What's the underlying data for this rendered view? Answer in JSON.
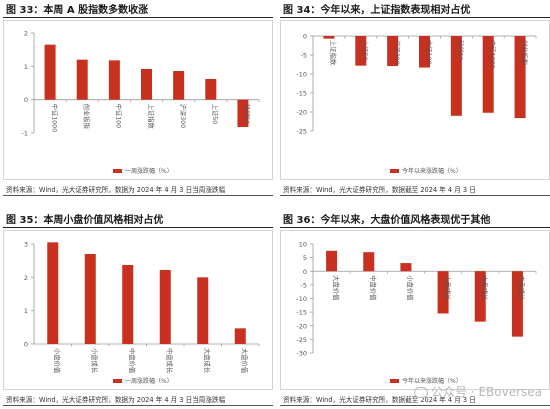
{
  "charts": [
    {
      "title": "图 33：本周 A 股指数多数收涨",
      "source": "资料来源：Wind，光大证券研究所，数据为 2024 年 4 月 3 日当周涨跌幅"
    },
    {
      "title": "图 34：今年以来，上证指数表现相对占优",
      "source": "资料来源：Wind，光大证券研究所，数据截至 2024 年 4 月 3 日"
    },
    {
      "title": "图 35：本周小盘价值风格相对占优",
      "source": "资料来源：Wind，光大证券研究所，数据为 2024 年 4 月 3 日当周涨跌幅"
    },
    {
      "title": "图 36：今年以来，大盘价值风格表现优于其他",
      "source": "资料来源：Wind，光大证券研究所，数据截至 2024 年 4 月 3 日"
    }
  ],
  "watermark": "公众号 · EBoversea",
  "colors": {
    "bar": "#c8311f",
    "axis": "#999999",
    "tick": "#555555"
  },
  "chart_data": [
    {
      "type": "bar",
      "categories": [
        "中证1000",
        "创业板指",
        "中证100",
        "上证指数",
        "沪深300",
        "上证50",
        "科创50"
      ],
      "values": [
        1.65,
        1.2,
        1.18,
        0.92,
        0.86,
        0.62,
        -0.82
      ],
      "ylim": [
        -1,
        2
      ],
      "yticks": [
        -1,
        0,
        1,
        2
      ],
      "legend": "一周涨跌幅（%）",
      "legend_position": "bottom-center",
      "grid": false
    },
    {
      "type": "bar",
      "categories": [
        "上证指数",
        "上证50",
        "沪深300",
        "中证100",
        "科创50",
        "中证1000",
        "创业板指"
      ],
      "values": [
        -0.7,
        -7.8,
        -7.9,
        -8.3,
        -21.0,
        -20.2,
        -21.6
      ],
      "ylim": [
        -25,
        0
      ],
      "yticks": [
        -25,
        -20,
        -15,
        -10,
        -5,
        0
      ],
      "legend": "今年以来涨跌幅（%）",
      "legend_position": "bottom-center",
      "grid": false
    },
    {
      "type": "bar",
      "categories": [
        "小盘价值",
        "小盘成长",
        "中盘价值",
        "中盘成长",
        "大盘成长",
        "大盘价值"
      ],
      "values": [
        3.05,
        2.7,
        2.37,
        2.22,
        2.0,
        0.47
      ],
      "ylim": [
        0,
        3
      ],
      "yticks": [
        0,
        1,
        2,
        3
      ],
      "legend": "一周涨跌幅（%）",
      "legend_position": "bottom-center",
      "grid": false
    },
    {
      "type": "bar",
      "categories": [
        "大盘价值",
        "中盘价值",
        "小盘价值",
        "小盘成长",
        "大盘成长",
        "中盘成长"
      ],
      "values": [
        7.5,
        7.0,
        3.0,
        -15.5,
        -18.5,
        -24.0
      ],
      "ylim": [
        -30,
        10
      ],
      "yticks": [
        -30,
        -25,
        -20,
        -15,
        -10,
        -5,
        0,
        5,
        10
      ],
      "legend": "今年以来涨跌幅（%）",
      "legend_position": "bottom-center",
      "grid": false
    }
  ]
}
